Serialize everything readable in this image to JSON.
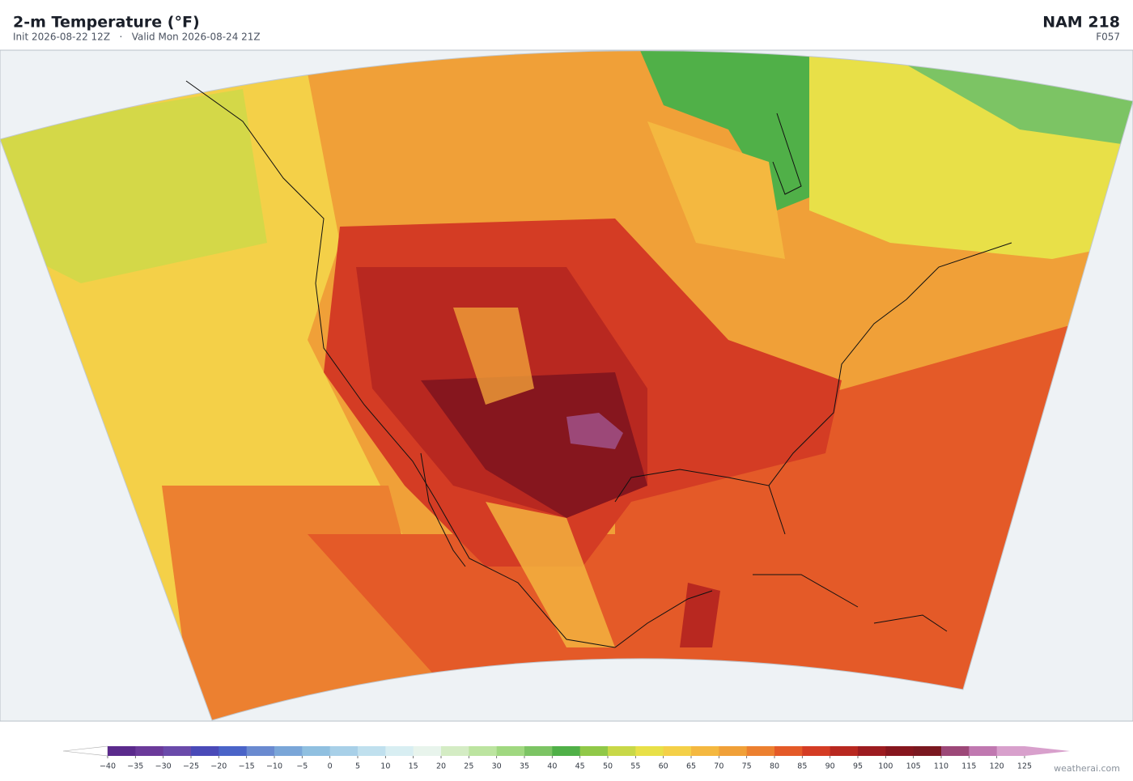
{
  "header": {
    "title": "2-m Temperature  (°F)",
    "subtitle": "Init 2026-08-22 12Z   ·   Valid Mon 2026-08-24 21Z",
    "model": "NAM  218",
    "forecast_hour": "F057"
  },
  "colorbar": {
    "ticks": [
      {
        "value": -40,
        "label": "−40"
      },
      {
        "value": -35,
        "label": "−35"
      },
      {
        "value": -30,
        "label": "−30"
      },
      {
        "value": -25,
        "label": "−25"
      },
      {
        "value": -20,
        "label": "−20"
      },
      {
        "value": -15,
        "label": "−15"
      },
      {
        "value": -10,
        "label": "−10"
      },
      {
        "value": -5,
        "label": "−5"
      },
      0,
      5,
      10,
      15,
      20,
      25,
      30,
      35,
      40,
      45,
      50,
      55,
      60,
      65,
      70,
      75,
      80,
      85,
      90,
      95,
      100,
      105,
      110,
      115,
      120,
      125
    ],
    "colors": [
      "#5b2a8c",
      "#6b3a9a",
      "#6a4aaa",
      "#4a4ab8",
      "#4a64c8",
      "#6a8ad0",
      "#7aa6d8",
      "#90c0e0",
      "#a8d0e8",
      "#c0e0ee",
      "#d8eef2",
      "#e8f4ec",
      "#d4ecc4",
      "#bce4a0",
      "#a0d880",
      "#7cc464",
      "#50b048",
      "#90c848",
      "#c8d848",
      "#e8e048",
      "#f4d048",
      "#f4b840",
      "#f0a038",
      "#ec8030",
      "#e45a28",
      "#d43c24",
      "#b82820",
      "#9c1c20",
      "#86161e",
      "#7a1820",
      "#9c4878",
      "#c078b0",
      "#d8a0cc"
    ],
    "under_color": "#ffffff",
    "over_color": "#d8a0cc"
  },
  "watermark": "weatherai.com"
}
